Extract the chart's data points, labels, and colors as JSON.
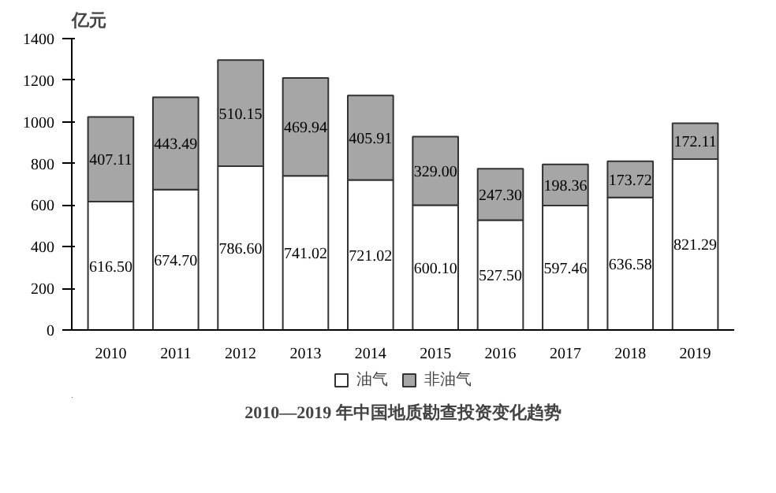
{
  "chart_data": {
    "type": "bar",
    "title": "2010—2019 年中国地质勘查投资变化趋势",
    "ylabel": "亿元",
    "categories": [
      "2010",
      "2011",
      "2012",
      "2013",
      "2014",
      "2015",
      "2016",
      "2017",
      "2018",
      "2019"
    ],
    "stacked": true,
    "legend": "bottom",
    "grid": false,
    "ylim": [
      0,
      1400
    ],
    "yticks": [
      0,
      200,
      400,
      600,
      800,
      1000,
      1200,
      1400
    ],
    "series": [
      {
        "name": "油气",
        "color": "#ffffff",
        "values": [
          616.5,
          674.7,
          786.6,
          741.02,
          721.02,
          600.1,
          527.5,
          597.46,
          636.58,
          821.29
        ],
        "value_labels": [
          "616.50",
          "674.70",
          "786.60",
          "741.02",
          "721.02",
          "600.10",
          "527.50",
          "597.46",
          "636.58",
          "821.29"
        ]
      },
      {
        "name": "非油气",
        "color": "#a6a6a6",
        "values": [
          407.11,
          443.49,
          510.15,
          469.94,
          405.91,
          329.0,
          247.3,
          198.36,
          173.72,
          172.11
        ],
        "value_labels": [
          "407.11",
          "443.49",
          "510.15",
          "469.94",
          "405.91",
          "329.00",
          "247.30",
          "198.36",
          "173.72",
          "172.11"
        ]
      }
    ]
  }
}
